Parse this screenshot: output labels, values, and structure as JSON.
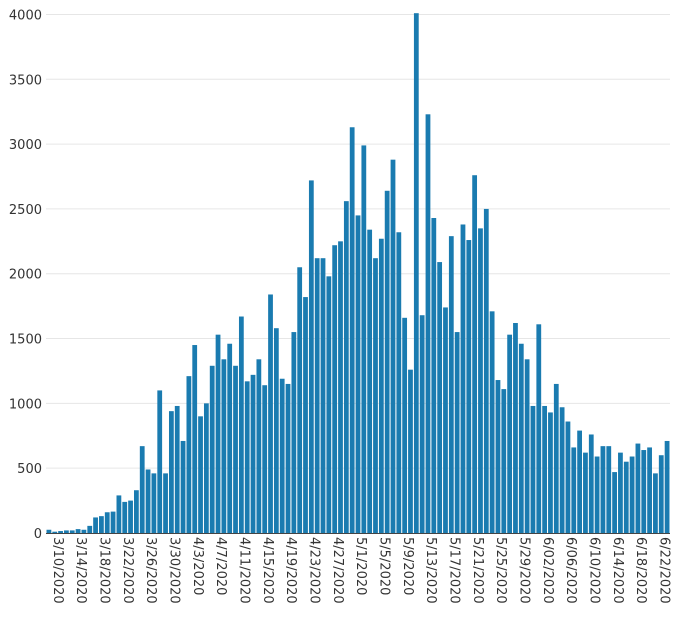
{
  "chart_data": {
    "type": "bar",
    "title": "",
    "xlabel": "",
    "ylabel": "",
    "ylim": [
      0,
      4050
    ],
    "yticks": [
      0,
      500,
      1000,
      1500,
      2000,
      2500,
      3000,
      3500,
      4000
    ],
    "grid": true,
    "bar_color": "#1a7bb0",
    "categories": [
      "3/10/2020",
      "3/11/2020",
      "3/12/2020",
      "3/13/2020",
      "3/14/2020",
      "3/15/2020",
      "3/16/2020",
      "3/17/2020",
      "3/18/2020",
      "3/19/2020",
      "3/20/2020",
      "3/21/2020",
      "3/22/2020",
      "3/23/2020",
      "3/24/2020",
      "3/25/2020",
      "3/26/2020",
      "3/27/2020",
      "3/28/2020",
      "3/29/2020",
      "3/30/2020",
      "3/31/2020",
      "4/1/2020",
      "4/2/2020",
      "4/3/2020",
      "4/4/2020",
      "4/5/2020",
      "4/6/2020",
      "4/7/2020",
      "4/8/2020",
      "4/9/2020",
      "4/10/2020",
      "4/11/2020",
      "4/12/2020",
      "4/13/2020",
      "4/14/2020",
      "4/15/2020",
      "4/16/2020",
      "4/17/2020",
      "4/18/2020",
      "4/19/2020",
      "4/20/2020",
      "4/21/2020",
      "4/22/2020",
      "4/23/2020",
      "4/24/2020",
      "4/25/2020",
      "4/26/2020",
      "4/27/2020",
      "4/28/2020",
      "4/29/2020",
      "4/30/2020",
      "5/1/2020",
      "5/2/2020",
      "5/3/2020",
      "5/4/2020",
      "5/5/2020",
      "5/6/2020",
      "5/7/2020",
      "5/8/2020",
      "5/9/2020",
      "5/10/2020",
      "5/11/2020",
      "5/12/2020",
      "5/13/2020",
      "5/14/2020",
      "5/15/2020",
      "5/16/2020",
      "5/17/2020",
      "5/18/2020",
      "5/19/2020",
      "5/20/2020",
      "5/21/2020",
      "5/22/2020",
      "5/23/2020",
      "5/24/2020",
      "5/25/2020",
      "5/26/2020",
      "5/27/2020",
      "5/28/2020",
      "5/29/2020",
      "5/30/2020",
      "5/31/2020",
      "6/01/2020",
      "6/02/2020",
      "6/03/2020",
      "6/04/2020",
      "6/05/2020",
      "6/06/2020",
      "6/07/2020",
      "6/08/2020",
      "6/09/2020",
      "6/10/2020",
      "6/11/2020",
      "6/12/2020",
      "6/13/2020",
      "6/14/2020",
      "6/15/2020",
      "6/16/2020",
      "6/17/2020",
      "6/18/2020",
      "6/19/2020",
      "6/20/2020",
      "6/21/2020",
      "6/22/2020",
      "6/23/2020",
      "6/24/2020"
    ],
    "tick_labels": [
      "3/10/2020",
      "3/14/2020",
      "3/18/2020",
      "3/22/2020",
      "3/26/2020",
      "3/30/2020",
      "4/3/2020",
      "4/7/2020",
      "4/11/2020",
      "4/15/2020",
      "4/19/2020",
      "4/23/2020",
      "4/27/2020",
      "5/1/2020",
      "5/5/2020",
      "5/9/2020",
      "5/13/2020",
      "5/17/2020",
      "5/21/2020",
      "5/25/2020",
      "5/29/2020",
      "6/02/2020",
      "6/06/2020",
      "6/10/2020",
      "6/14/2020",
      "6/18/2020",
      "6/22/2020"
    ],
    "values": [
      25,
      10,
      15,
      20,
      20,
      30,
      25,
      55,
      120,
      130,
      160,
      165,
      290,
      240,
      250,
      330,
      670,
      490,
      460,
      1100,
      460,
      940,
      980,
      710,
      1210,
      1450,
      900,
      1000,
      1290,
      1530,
      1340,
      1460,
      1290,
      1670,
      1170,
      1220,
      1340,
      1140,
      1840,
      1580,
      1190,
      1150,
      1550,
      2050,
      1820,
      2720,
      2120,
      2120,
      1980,
      2220,
      2250,
      2560,
      3130,
      2450,
      2990,
      2340,
      2120,
      2270,
      2640,
      2880,
      2320,
      1660,
      1260,
      4010,
      1680,
      3230,
      2430,
      2090,
      1740,
      2290,
      1550,
      2380,
      2260,
      2760,
      2350,
      2500,
      1710,
      1180,
      1110,
      1530,
      1620,
      1460,
      1340,
      980,
      1610,
      980,
      930,
      1150,
      970,
      860,
      660,
      790,
      620,
      760,
      590,
      670,
      670,
      470,
      620,
      550,
      590,
      690,
      640,
      660,
      460,
      600,
      710
    ]
  }
}
